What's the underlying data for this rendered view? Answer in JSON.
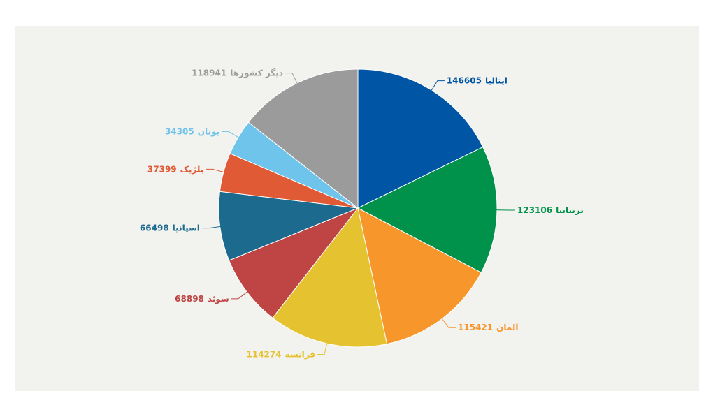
{
  "chart_data": {
    "type": "pie",
    "categories": [
      "ایتالیا",
      "بریتانیا",
      "آلمان",
      "فرانسه",
      "سوئد",
      "اسپانیا",
      "بلژیک",
      "یونان",
      "دیگر کشورها"
    ],
    "values": [
      146605,
      123106,
      115421,
      114274,
      68898,
      66498,
      37399,
      34305,
      118941
    ],
    "colors": [
      "#0055a5",
      "#00924a",
      "#f7962b",
      "#e5c22f",
      "#bf4545",
      "#1c6a8e",
      "#e05a35",
      "#6ec4ea",
      "#9b9b9b"
    ]
  }
}
